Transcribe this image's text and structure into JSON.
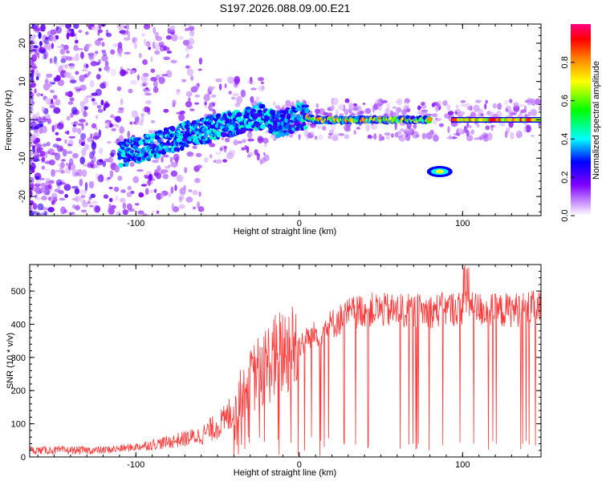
{
  "title": "S197.2026.088.09.00.E21",
  "chart_data": [
    {
      "type": "heatmap",
      "xlabel": "Height of straight line (km)",
      "ylabel": "Frequency (Hz)",
      "xlim": [
        -165,
        148
      ],
      "ylim": [
        -25,
        25
      ],
      "xticks": [
        -100,
        0,
        100
      ],
      "yticks": [
        -20,
        -10,
        0,
        10,
        20
      ],
      "colorbar": {
        "label": "Normalized spectral amplitude",
        "range": [
          0,
          1
        ],
        "ticks": [
          0.0,
          0.2,
          0.4,
          0.6,
          0.8
        ],
        "colors": [
          "#ffffff",
          "#8000ff",
          "#0000ff",
          "#00ffff",
          "#00ff00",
          "#ffff00",
          "#ff8000",
          "#ff0000",
          "#ff00a0"
        ]
      },
      "features": [
        {
          "name": "main-signal-trace",
          "x": [
            -110,
            -90,
            -70,
            -50,
            -35,
            -25,
            -15,
            -10,
            0,
            10,
            40,
            80
          ],
          "y": [
            -9,
            -7,
            -4,
            -2,
            0,
            1,
            -1,
            -1,
            1,
            0,
            0,
            0
          ]
        },
        {
          "name": "flat-line-segment",
          "x_range": [
            93,
            148
          ],
          "y": 0
        },
        {
          "name": "isolated-blob",
          "x": 86,
          "y": -13.5
        }
      ]
    },
    {
      "type": "line",
      "xlabel": "Height of straight line (km)",
      "ylabel": "SNR (10 * v/v)",
      "xlim": [
        -165,
        148
      ],
      "ylim": [
        0,
        580
      ],
      "xticks": [
        -100,
        0,
        100
      ],
      "yticks": [
        0,
        100,
        200,
        300,
        400,
        500
      ],
      "color": "#ff3a3a",
      "envelope": {
        "x": [
          -165,
          -120,
          -100,
          -80,
          -60,
          -45,
          -35,
          -25,
          -10,
          0,
          10,
          20,
          30,
          40,
          60,
          80,
          100,
          120,
          148
        ],
        "y": [
          20,
          20,
          30,
          45,
          65,
          110,
          190,
          260,
          320,
          340,
          370,
          400,
          430,
          445,
          440,
          440,
          450,
          440,
          450
        ]
      }
    }
  ]
}
